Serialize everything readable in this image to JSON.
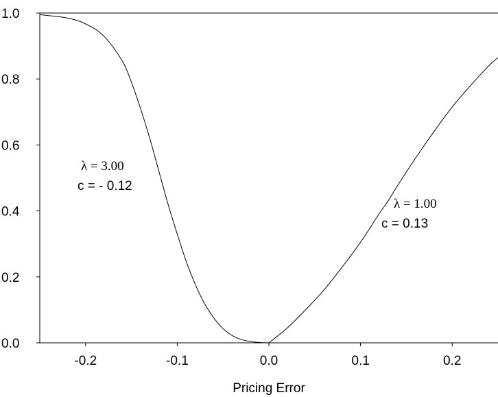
{
  "chart_data": {
    "type": "line",
    "title": "",
    "xlabel": "Pricing Error",
    "ylabel": "",
    "xlim": [
      -0.25,
      0.25
    ],
    "ylim": [
      0.0,
      1.0
    ],
    "x_ticks": [
      -0.2,
      -0.1,
      0.0,
      0.1,
      0.2
    ],
    "x_tick_labels": [
      "-0.2",
      "-0.1",
      "0.0",
      "0.1",
      "0.2"
    ],
    "y_ticks": [
      0.0,
      0.2,
      0.4,
      0.6,
      0.8,
      1.0
    ],
    "y_tick_labels": [
      "0.0",
      "0.2",
      "0.4",
      "0.6",
      "0.8",
      "1.0"
    ],
    "grid": false,
    "series": [
      {
        "segment": "negative",
        "x": [
          -0.25,
          -0.22,
          -0.2,
          -0.18,
          -0.16,
          -0.15,
          -0.14,
          -0.13,
          -0.12,
          -0.11,
          -0.1,
          -0.09,
          -0.08,
          -0.07,
          -0.06,
          -0.05,
          -0.04,
          -0.03,
          -0.02,
          -0.01,
          0.0
        ],
        "y": [
          0.995,
          0.985,
          0.967,
          0.93,
          0.855,
          0.79,
          0.71,
          0.62,
          0.52,
          0.42,
          0.33,
          0.245,
          0.175,
          0.118,
          0.075,
          0.043,
          0.022,
          0.01,
          0.004,
          0.001,
          0.0
        ]
      },
      {
        "segment": "positive",
        "x": [
          0.0,
          0.02,
          0.04,
          0.06,
          0.08,
          0.1,
          0.12,
          0.13,
          0.14,
          0.16,
          0.18,
          0.2,
          0.22,
          0.24,
          0.25
        ],
        "y": [
          0.0,
          0.045,
          0.1,
          0.16,
          0.23,
          0.305,
          0.39,
          0.43,
          0.475,
          0.56,
          0.64,
          0.715,
          0.78,
          0.84,
          0.865
        ]
      }
    ],
    "annotations": [
      {
        "lambda_text": "λ = 3.00",
        "c_text": "c = - 0.12"
      },
      {
        "lambda_text": "λ = 1.00",
        "c_text": "c = 0.13"
      }
    ]
  }
}
